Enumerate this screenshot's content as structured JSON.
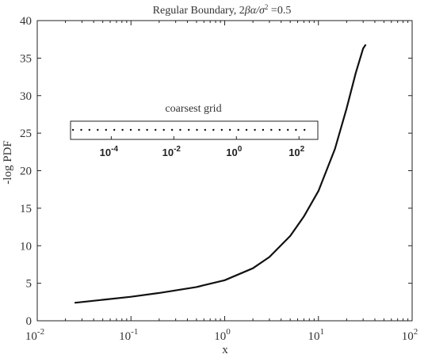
{
  "chart_data": {
    "type": "line",
    "title_prefix": "Regular Boundary, 2",
    "title_suffix": "=0.5",
    "xlabel": "x",
    "ylabel": "-log PDF",
    "xscale": "log",
    "xlim": [
      0.01,
      100
    ],
    "ylim": [
      0,
      40
    ],
    "xticks": [
      {
        "base": "10",
        "exp": "-2"
      },
      {
        "base": "10",
        "exp": "-1"
      },
      {
        "base": "10",
        "exp": "0"
      },
      {
        "base": "10",
        "exp": "1"
      },
      {
        "base": "10",
        "exp": "2"
      }
    ],
    "yticks": [
      "0",
      "5",
      "10",
      "15",
      "20",
      "25",
      "30",
      "35",
      "40"
    ],
    "grid": false,
    "series": [
      {
        "x": [
          0.025,
          0.05,
          0.1,
          0.2,
          0.5,
          1.0,
          2.0,
          3.0,
          5.0,
          7.0,
          10.0,
          15.0,
          20.0,
          25.0,
          30.0,
          32.0
        ],
        "y": [
          2.4,
          2.8,
          3.2,
          3.7,
          4.5,
          5.4,
          7.0,
          8.5,
          11.3,
          13.9,
          17.3,
          22.9,
          28.3,
          33.0,
          36.3,
          36.8
        ]
      }
    ],
    "inset": {
      "title": "coarsest grid",
      "xscale": "log",
      "xlim": [
        5e-06,
        400
      ],
      "xticks": [
        {
          "base": "10",
          "exp": "-4"
        },
        {
          "base": "10",
          "exp": "-2"
        },
        {
          "base": "10",
          "exp": "0"
        },
        {
          "base": "10",
          "exp": "2"
        }
      ],
      "points": [
        6e-06,
        1.1e-05,
        2e-05,
        3.7e-05,
        6.8e-05,
        0.000125,
        0.00023,
        0.00042,
        0.00077,
        0.0014,
        0.0026,
        0.0048,
        0.0088,
        0.016,
        0.03,
        0.055,
        0.1,
        0.185,
        0.34,
        0.62,
        1.15,
        2.1,
        3.9,
        7.1,
        13.0,
        24.0,
        44.0,
        80.0,
        150.0
      ]
    }
  }
}
